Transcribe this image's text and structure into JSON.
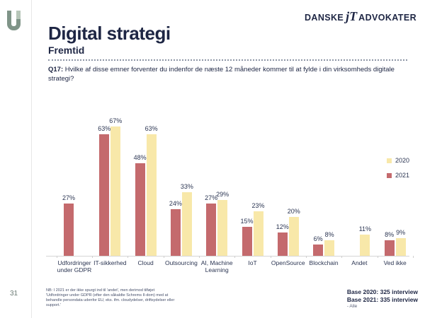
{
  "page": {
    "number": "31"
  },
  "brand": {
    "left": "DANSKE",
    "mark": "jT",
    "right": "ADVOKATER"
  },
  "header": {
    "title": "Digital strategi",
    "subtitle": "Fremtid"
  },
  "question": {
    "label": "Q17:",
    "text": " Hvilke af disse emner forventer du indenfor de næste 12 måneder kommer til at fylde i din virksomheds digitale strategi?"
  },
  "chart_data": {
    "type": "bar",
    "categories": [
      "Udfordringer under GDPR",
      "IT-sikkerhed",
      "Cloud",
      "Outsourcing",
      "AI, Machine Learning",
      "IoT",
      "OpenSource",
      "Blockchain",
      "Andet",
      "Ved ikke"
    ],
    "series": [
      {
        "name": "2020",
        "color": "#f8e8a9",
        "values": [
          null,
          67,
          63,
          33,
          29,
          23,
          20,
          8,
          11,
          9
        ]
      },
      {
        "name": "2021",
        "color": "#c46a6d",
        "values": [
          27,
          63,
          48,
          24,
          27,
          15,
          12,
          6,
          null,
          8
        ]
      }
    ],
    "value_suffix": "%",
    "ylim": [
      0,
      70
    ],
    "legend_position": "right",
    "grid": false,
    "axes_hidden": true
  },
  "footnote": {
    "text": "NB: I 2021 er der ikke spurgt ind til 'andet', men derimod tilføjet 'Udfordringer under GDPR (efter den såkaldte Schrems II-dom) med at behandle persondata udenfor EU, eks. ifm. cloudydelser, driftsydelser eller support.'"
  },
  "base_info": {
    "line1": "Base 2020: 325 interview",
    "line2": "Base 2021: 335 interview",
    "line3": "- Alle"
  }
}
